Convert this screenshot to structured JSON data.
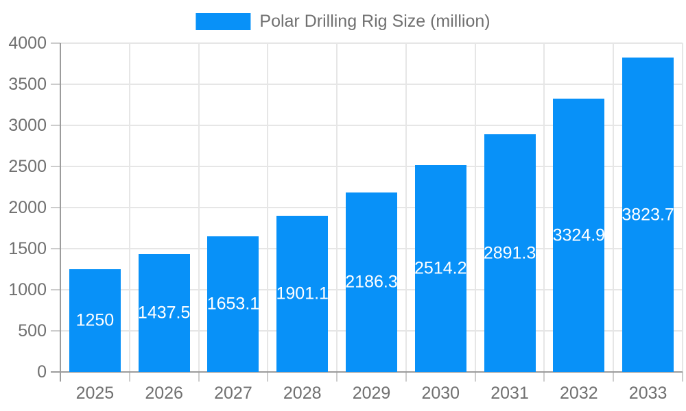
{
  "legend": {
    "label": "Polar Drilling Rig Size (million)"
  },
  "colors": {
    "bar": "#0891f8",
    "grid": "#e6e6e6",
    "axis": "#9c9c9c",
    "tick": "#cccccc",
    "text": "#707070",
    "value_text": "#ffffff",
    "background": "#ffffff"
  },
  "chart_data": {
    "type": "bar",
    "title": "Polar Drilling Rig Size (million)",
    "series_name": "Polar Drilling Rig Size (million)",
    "categories": [
      "2025",
      "2026",
      "2027",
      "2028",
      "2029",
      "2030",
      "2031",
      "2032",
      "2033"
    ],
    "values": [
      1250,
      1437.5,
      1653.1,
      1901.1,
      2186.3,
      2514.2,
      2891.3,
      3324.9,
      3823.7
    ],
    "value_labels": [
      "1250",
      "1437.5",
      "1653.1",
      "1901.1",
      "2186.3",
      "2514.2",
      "2891.3",
      "3324.9",
      "3823.7"
    ],
    "xlabel": "",
    "ylabel": "",
    "ylim": [
      0,
      4000
    ],
    "yticks": [
      0,
      500,
      1000,
      1500,
      2000,
      2500,
      3000,
      3500,
      4000
    ],
    "grid": true,
    "legend_position": "top",
    "value_label_position": "center-inside"
  }
}
